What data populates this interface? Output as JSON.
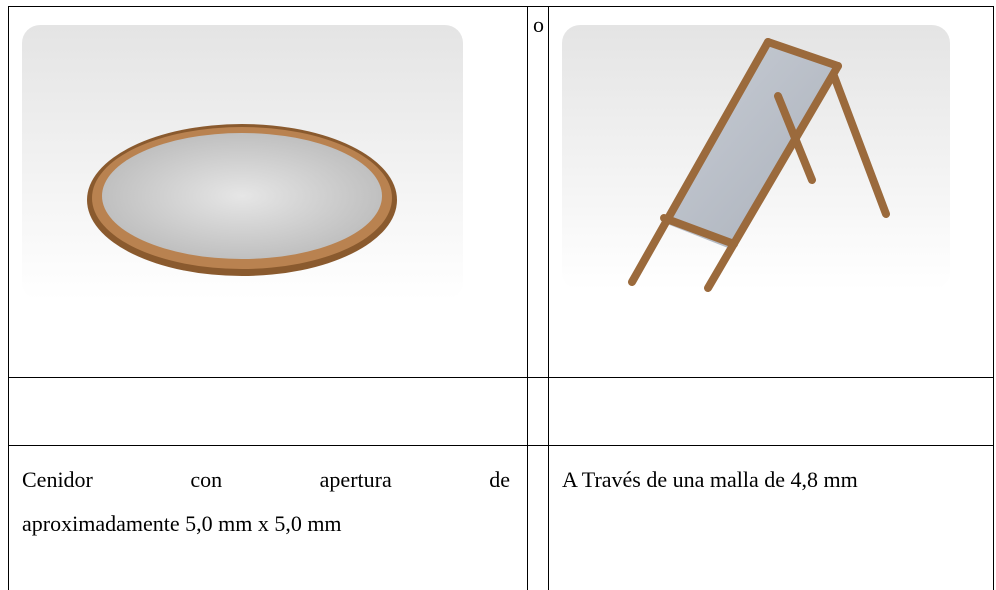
{
  "table": {
    "separator": "o",
    "left_caption_lines": [
      "Cenidor con apertura de",
      "aproximadamente 5,0 mm x 5,0 mm"
    ],
    "right_caption": "A Través de una malla de 4,8 mm"
  }
}
